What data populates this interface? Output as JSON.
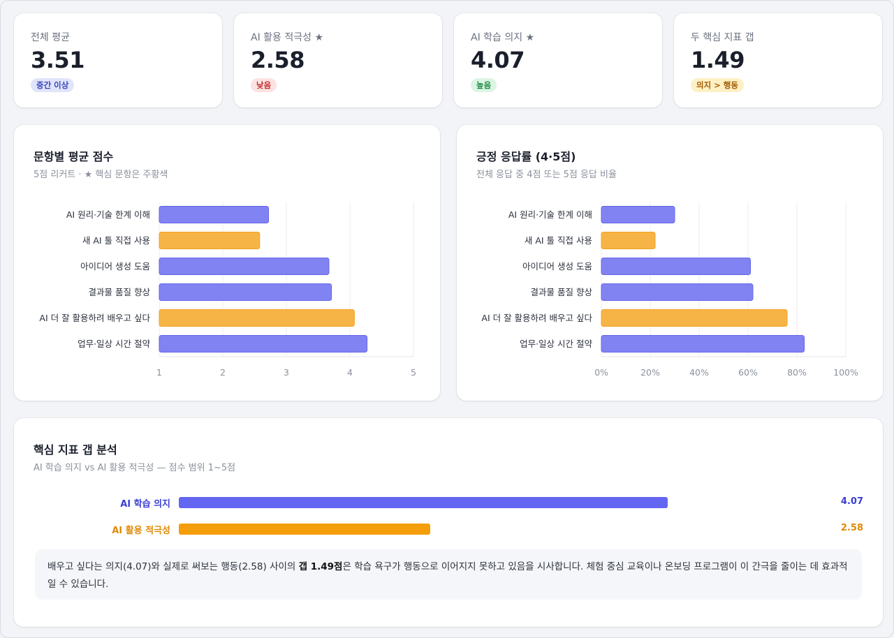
{
  "kpis": [
    {
      "label": "전체 평균",
      "value": "3.51",
      "badge": "중간 이상",
      "tone": "blue"
    },
    {
      "label": "AI 활용 적극성 ★",
      "value": "2.58",
      "badge": "낮음",
      "tone": "red"
    },
    {
      "label": "AI 학습 의지 ★",
      "value": "4.07",
      "badge": "높음",
      "tone": "green"
    },
    {
      "label": "두 핵심 지표 갭",
      "value": "1.49",
      "badge": "의지 > 행동",
      "tone": "yellow"
    }
  ],
  "avg_card": {
    "title": "문항별 평균 점수",
    "subtitle": "5점 리커트 · ★ 핵심 문항은 주황색"
  },
  "pos_card": {
    "title": "긍정 응답률 (4·5점)",
    "subtitle": "전체 응답 중 4점 또는 5점 응답 비율"
  },
  "gap_card": {
    "title": "핵심 지표 갭 분석",
    "subtitle": "AI 학습 의지 vs AI 활용 적극성 — 점수 범위 1~5점",
    "rows": [
      {
        "label": "AI 학습 의지",
        "value": 4.07,
        "value_text": "4.07",
        "color": "#6366f1"
      },
      {
        "label": "AI 활용 적극성",
        "value": 2.58,
        "value_text": "2.58",
        "color": "#f59e0b"
      }
    ],
    "range": [
      1,
      5
    ],
    "note_before": "배우고 싶다는 의지(4.07)와 실제로 써보는 행동(2.58) 사이의 ",
    "note_bold": "갭 1.49점",
    "note_after": "은 학습 욕구가 행동으로 이어지지 못하고 있음을 시사합니다. 체험 중심 교육이나 온보딩 프로그램이 이 간극을 줄이는 데 효과적일 수 있습니다."
  },
  "colors": {
    "normal": "#8283f2",
    "normal_stroke": "#6466e8",
    "key": "#f7b446",
    "key_stroke": "#f2a21f"
  },
  "chart_data": [
    {
      "type": "bar",
      "orientation": "horizontal",
      "title": "문항별 평균 점수",
      "subtitle": "5점 리커트 · ★ 핵심 문항은 주황색",
      "categories": [
        "AI 원리·기술 한계 이해",
        "새 AI 툴 직접 사용",
        "아이디어 생성 도움",
        "결과물 품질 향상",
        "AI 더 잘 활용하려 배우고 싶다",
        "업무·일상 시간 절약"
      ],
      "values": [
        2.72,
        2.58,
        3.67,
        3.71,
        4.07,
        4.27
      ],
      "key_items": [
        false,
        true,
        false,
        false,
        true,
        false
      ],
      "xlim": [
        1,
        5
      ],
      "xticks": [
        "1",
        "2",
        "3",
        "4",
        "5"
      ],
      "xtick_values": [
        1,
        2,
        3,
        4,
        5
      ],
      "grid": true,
      "legend": "none"
    },
    {
      "type": "bar",
      "orientation": "horizontal",
      "title": "긍정 응답률 (4·5점)",
      "subtitle": "전체 응답 중 4점 또는 5점 응답 비율",
      "categories": [
        "AI 원리·기술 한계 이해",
        "새 AI 툴 직접 사용",
        "아이디어 생성 도움",
        "결과물 품질 향상",
        "AI 더 잘 활용하려 배우고 싶다",
        "업무·일상 시간 절약"
      ],
      "values": [
        30,
        22,
        61,
        62,
        76,
        83
      ],
      "key_items": [
        false,
        true,
        false,
        false,
        true,
        false
      ],
      "xlim": [
        0,
        100
      ],
      "xticks": [
        "0%",
        "20%",
        "40%",
        "60%",
        "80%",
        "100%"
      ],
      "xtick_values": [
        0,
        20,
        40,
        60,
        80,
        100
      ],
      "grid": true,
      "legend": "none"
    }
  ]
}
